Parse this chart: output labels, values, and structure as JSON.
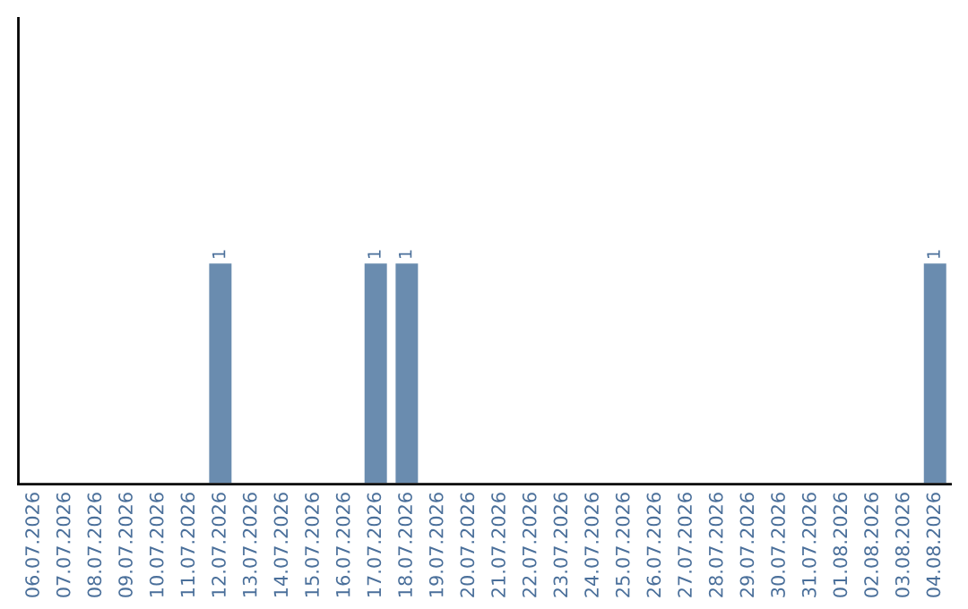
{
  "chart_data": {
    "type": "bar",
    "categories": [
      "06.07.2026",
      "07.07.2026",
      "08.07.2026",
      "09.07.2026",
      "10.07.2026",
      "11.07.2026",
      "12.07.2026",
      "13.07.2026",
      "14.07.2026",
      "15.07.2026",
      "16.07.2026",
      "17.07.2026",
      "18.07.2026",
      "19.07.2026",
      "20.07.2026",
      "21.07.2026",
      "22.07.2026",
      "23.07.2026",
      "24.07.2026",
      "25.07.2026",
      "26.07.2026",
      "27.07.2026",
      "28.07.2026",
      "29.07.2026",
      "30.07.2026",
      "31.07.2026",
      "01.08.2026",
      "02.08.2026",
      "03.08.2026",
      "04.08.2026"
    ],
    "values": [
      null,
      null,
      null,
      null,
      null,
      null,
      1,
      null,
      null,
      null,
      null,
      1,
      1,
      null,
      null,
      null,
      null,
      null,
      null,
      null,
      null,
      null,
      null,
      null,
      null,
      null,
      null,
      null,
      null,
      1
    ],
    "value_labels": [
      null,
      null,
      null,
      null,
      null,
      null,
      "1",
      null,
      null,
      null,
      null,
      "1",
      "1",
      null,
      null,
      null,
      null,
      null,
      null,
      null,
      null,
      null,
      null,
      null,
      null,
      null,
      null,
      null,
      null,
      "1"
    ],
    "color": "#6a8caf",
    "ylim": [
      0,
      2.1
    ],
    "tick_labels": "x",
    "grid": false,
    "legend": false
  }
}
